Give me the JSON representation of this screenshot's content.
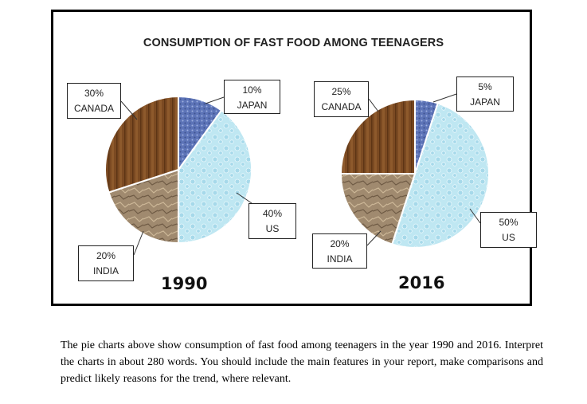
{
  "chart_data": [
    {
      "type": "pie",
      "title": "CONSUMPTION OF FAST FOOD AMONG TEENAGERS",
      "year_label": "1990",
      "slices": [
        {
          "label": "JAPAN",
          "value": 10,
          "value_label": "10%"
        },
        {
          "label": "US",
          "value": 40,
          "value_label": "40%"
        },
        {
          "label": "INDIA",
          "value": 20,
          "value_label": "20%"
        },
        {
          "label": "CANADA",
          "value": 30,
          "value_label": "30%"
        }
      ]
    },
    {
      "type": "pie",
      "title": "CONSUMPTION OF FAST FOOD AMONG TEENAGERS",
      "year_label": "2016",
      "slices": [
        {
          "label": "JAPAN",
          "value": 5,
          "value_label": "5%"
        },
        {
          "label": "US",
          "value": 50,
          "value_label": "50%"
        },
        {
          "label": "INDIA",
          "value": 20,
          "value_label": "20%"
        },
        {
          "label": "CANADA",
          "value": 25,
          "value_label": "25%"
        }
      ]
    }
  ],
  "colors": {
    "JAPAN": "#5d74b8",
    "US": "#bfe7f2",
    "INDIA": "#a08a6f",
    "CANADA": "#7b4a22"
  },
  "caption": "The pie charts above show consumption of fast food among teenagers in the year 1990 and 2016. Interpret the charts in about 280 words. You should include the main features in your report, make comparisons and predict likely reasons for the trend, where relevant."
}
